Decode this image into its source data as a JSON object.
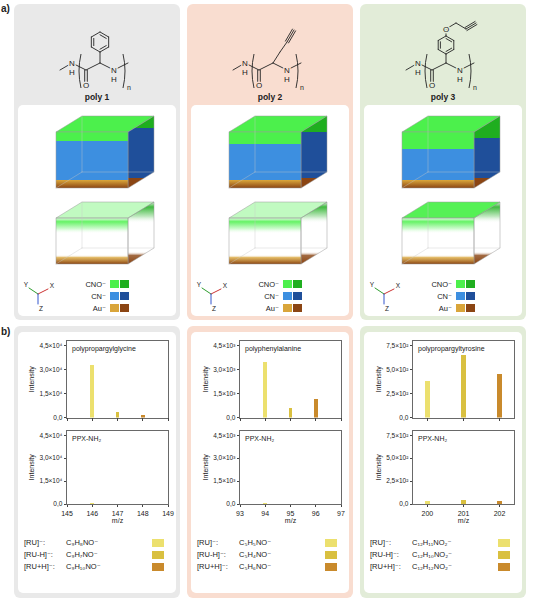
{
  "panel_labels": [
    "a)",
    "b)"
  ],
  "axis_triad": [
    "Y",
    "Z",
    "X"
  ],
  "columns": [
    {
      "title": "poly 1",
      "color": "#e9e9e9",
      "structure_atoms": [
        "N",
        "H",
        "O",
        "N",
        "H",
        "n"
      ],
      "layers": [
        {
          "label": "CNO⁻",
          "colors": [
            "#4cf04c",
            "#1fae1f"
          ]
        },
        {
          "label": "CN⁻",
          "colors": [
            "#3d8fe0",
            "#1f4f9a"
          ]
        },
        {
          "label": "Au⁻",
          "colors": [
            "#d9a53a",
            "#8b4513"
          ]
        }
      ],
      "ions": [
        {
          "label": "[RU]⁻:",
          "formula": "C₉H₈NO⁻",
          "color": "#ece06e"
        },
        {
          "label": "[RU-H]⁻:",
          "formula": "C₉H₇NO⁻",
          "color": "#d9c040"
        },
        {
          "label": "[RU+H]⁻:",
          "formula": "C₉H₁₀NO⁻",
          "color": "#c98a2c"
        }
      ]
    },
    {
      "title": "poly 2",
      "color": "#f9ddd0",
      "structure_atoms": [
        "N",
        "H",
        "O",
        "N",
        "H",
        "n"
      ],
      "layers": [
        {
          "label": "CNO⁻",
          "colors": [
            "#4cf04c",
            "#1fae1f"
          ]
        },
        {
          "label": "CN⁻",
          "colors": [
            "#3d8fe0",
            "#1f4f9a"
          ]
        },
        {
          "label": "Au⁻",
          "colors": [
            "#d9a53a",
            "#8b4513"
          ]
        }
      ],
      "ions": [
        {
          "label": "[RU]⁻:",
          "formula": "C₅H₅NO⁻",
          "color": "#ece06e"
        },
        {
          "label": "[RU-H]⁻:",
          "formula": "C₅H₄NO⁻",
          "color": "#d9c040"
        },
        {
          "label": "[RU+H]⁻:",
          "formula": "C₅H₆NO⁻",
          "color": "#c98a2c"
        }
      ]
    },
    {
      "title": "poly 3",
      "color": "#e2ecd8",
      "structure_atoms": [
        "N",
        "H",
        "O",
        "N",
        "H",
        "n",
        "O"
      ],
      "layers": [
        {
          "label": "CNO⁻",
          "colors": [
            "#4cf04c",
            "#1fae1f"
          ]
        },
        {
          "label": "CN⁻",
          "colors": [
            "#3d8fe0",
            "#1f4f9a"
          ]
        },
        {
          "label": "Au⁻",
          "colors": [
            "#d9a53a",
            "#8b4513"
          ]
        }
      ],
      "ions": [
        {
          "label": "[RU]⁻:",
          "formula": "C₁₂H₁₁NO₂⁻",
          "color": "#ece06e"
        },
        {
          "label": "[RU-H]⁻:",
          "formula": "C₁₂H₁₀NO₂⁻",
          "color": "#d9c040"
        },
        {
          "label": "[RU+H]⁻:",
          "formula": "C₁₂H₁₂NO₂⁻",
          "color": "#c98a2c"
        }
      ]
    }
  ],
  "chart_data": [
    {
      "type": "bar",
      "title": "polypropargylglycine",
      "x": [
        146,
        147,
        148
      ],
      "values": [
        33000,
        3500,
        1600
      ],
      "colors": [
        "#ece06e",
        "#d9c040",
        "#c98a2c"
      ],
      "xlim": [
        145,
        149
      ],
      "xticks": [
        145,
        146,
        147,
        148,
        149
      ],
      "ylim": [
        0,
        48000
      ],
      "yticks": [
        {
          "value": 0,
          "label": "0,0"
        },
        {
          "value": 15000,
          "label": "1,5×10⁴"
        },
        {
          "value": 30000,
          "label": "3,0×10⁴"
        },
        {
          "value": 45000,
          "label": "4,5×10⁴"
        }
      ],
      "ylabel": "Intensity",
      "tick_labels": "y"
    },
    {
      "type": "bar",
      "title": "PPX-NH₂",
      "x": [
        146,
        147,
        148
      ],
      "values": [
        900,
        150,
        80
      ],
      "colors": [
        "#ece06e",
        "#d9c040",
        "#c98a2c"
      ],
      "xlim": [
        145,
        149
      ],
      "xticks": [
        145,
        146,
        147,
        148,
        149
      ],
      "ylim": [
        0,
        48000
      ],
      "yticks": [
        {
          "value": 0,
          "label": "0,0"
        },
        {
          "value": 15000,
          "label": "1,5×10⁴"
        },
        {
          "value": 30000,
          "label": "3,0×10⁴"
        },
        {
          "value": 45000,
          "label": "4,5×10⁴"
        }
      ],
      "xlabel": "m/z",
      "ylabel": "Intensity"
    },
    {
      "type": "bar",
      "title": "polyphenylalanine",
      "x": [
        94,
        95,
        96
      ],
      "values": [
        3500,
        600,
        1150
      ],
      "colors": [
        "#ece06e",
        "#d9c040",
        "#c98a2c"
      ],
      "xlim": [
        93,
        97
      ],
      "xticks": [
        93,
        94,
        95,
        96,
        97
      ],
      "ylim": [
        0,
        4800
      ],
      "yticks": [
        {
          "value": 0,
          "label": "0,0"
        },
        {
          "value": 1500,
          "label": "1,5×10³"
        },
        {
          "value": 3000,
          "label": "3,0×10³"
        },
        {
          "value": 4500,
          "label": "4,5×10³"
        }
      ],
      "ylabel": "Intensity",
      "tick_labels": "y"
    },
    {
      "type": "bar",
      "title": "PPX-NH₂",
      "x": [
        94,
        95,
        96
      ],
      "values": [
        60,
        15,
        20
      ],
      "colors": [
        "#ece06e",
        "#d9c040",
        "#c98a2c"
      ],
      "xlim": [
        93,
        97
      ],
      "xticks": [
        93,
        94,
        95,
        96,
        97
      ],
      "ylim": [
        0,
        4800
      ],
      "yticks": [
        {
          "value": 0,
          "label": "0,0"
        },
        {
          "value": 1500,
          "label": "1,5×10³"
        },
        {
          "value": 3000,
          "label": "3,0×10³"
        },
        {
          "value": 4500,
          "label": "4,5×10³"
        }
      ],
      "xlabel": "m/z",
      "ylabel": "Intensity"
    },
    {
      "type": "bar",
      "title": "polypropargyltyrosine",
      "x": [
        200,
        201,
        202
      ],
      "values": [
        380,
        650,
        460
      ],
      "colors": [
        "#ece06e",
        "#d9c040",
        "#c98a2c"
      ],
      "xlim": [
        199.6,
        202.4
      ],
      "xticks": [
        200,
        201,
        202
      ],
      "ylim": [
        0,
        800
      ],
      "yticks": [
        {
          "value": 0,
          "label": "0,0"
        },
        {
          "value": 250,
          "label": "2,5×10²"
        },
        {
          "value": 500,
          "label": "5,0×10²"
        },
        {
          "value": 750,
          "label": "7,5×10²"
        }
      ],
      "ylabel": "Intensity",
      "tick_labels": "y"
    },
    {
      "type": "bar",
      "title": "PPX-NH₂",
      "x": [
        200,
        201,
        202
      ],
      "values": [
        30,
        45,
        35
      ],
      "colors": [
        "#ece06e",
        "#d9c040",
        "#c98a2c"
      ],
      "xlim": [
        199.6,
        202.4
      ],
      "xticks": [
        200,
        201,
        202
      ],
      "ylim": [
        0,
        800
      ],
      "yticks": [
        {
          "value": 0,
          "label": "0,0"
        },
        {
          "value": 250,
          "label": "2,5×10²"
        },
        {
          "value": 500,
          "label": "5,0×10²"
        },
        {
          "value": 750,
          "label": "7,5×10²"
        }
      ],
      "xlabel": "m/z",
      "ylabel": "Intensity"
    }
  ]
}
